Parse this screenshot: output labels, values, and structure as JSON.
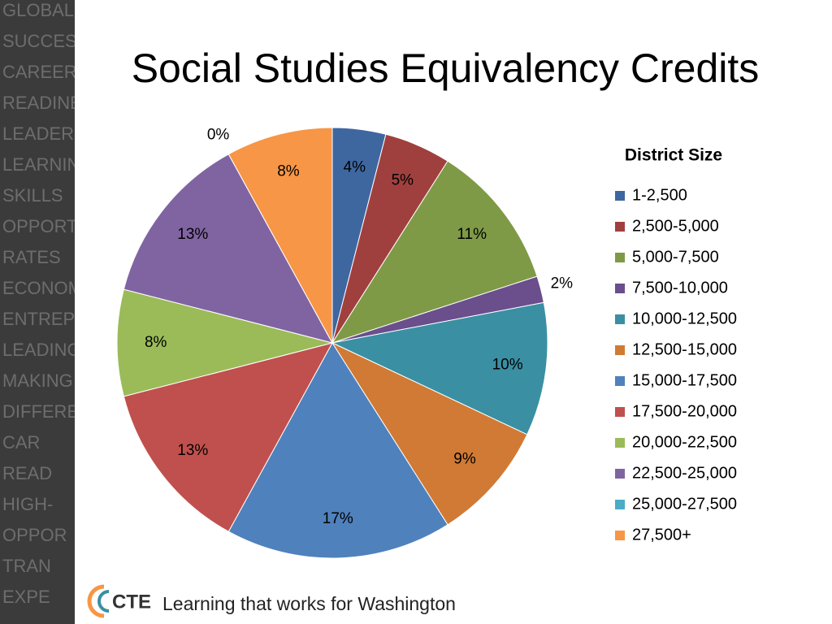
{
  "chart_data": {
    "type": "pie",
    "title": "Social Studies Equivalency Credits",
    "legend_title": "District Size",
    "legend": "right",
    "categories": [
      "1-2,500",
      "2,500-5,000",
      "5,000-7,500",
      "7,500-10,000",
      "10,000-12,500",
      "12,500-15,000",
      "15,000-17,500",
      "17,500-20,000",
      "20,000-22,500",
      "22,500-25,000",
      "25,000-27,500",
      "27,500+"
    ],
    "values": [
      4,
      5,
      11,
      2,
      10,
      9,
      17,
      13,
      8,
      13,
      0,
      8
    ],
    "value_labels": [
      "4%",
      "5%",
      "11%",
      "2%",
      "10%",
      "9%",
      "17%",
      "13%",
      "8%",
      "13%",
      "0%",
      "8%"
    ],
    "colors": [
      "#3E67A0",
      "#A0403E",
      "#7E9A46",
      "#6B4E8C",
      "#3A8FA3",
      "#D07A35",
      "#4F81BD",
      "#C0504D",
      "#9BBB59",
      "#8064A2",
      "#4BACC6",
      "#F79646"
    ]
  },
  "sidebar_words": [
    "GLOBAL",
    "SUCCESS",
    "CAREER",
    "READINESS",
    "LEADERSHIP",
    "LEARNING",
    "SKILLS",
    "OPPORTUNITY",
    "RATES",
    "ECONOMIC",
    "ENTREPRE",
    "LEADING C",
    "MAKING",
    "DIFFERE",
    "CAR",
    "READ",
    "HIGH-",
    "OPPOR",
    "TRAN",
    "EXPE"
  ],
  "footer": {
    "logo": "CTE",
    "tagline": "Learning that works for Washington"
  }
}
